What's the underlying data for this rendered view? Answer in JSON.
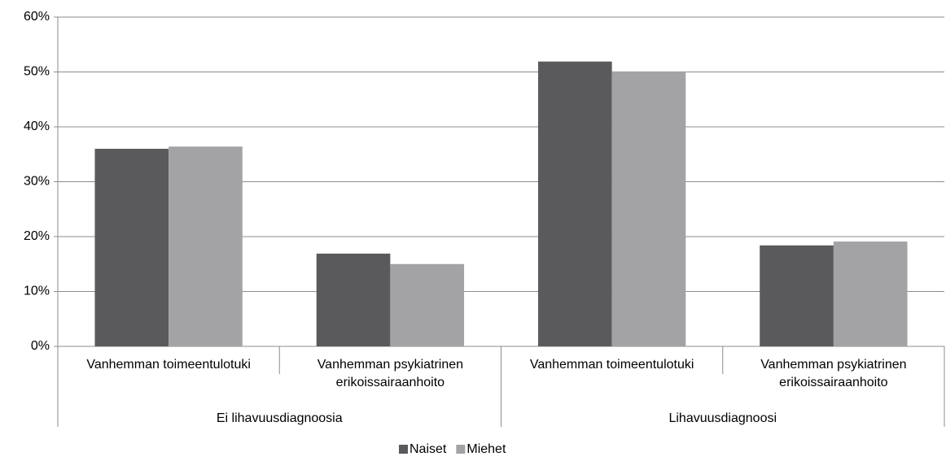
{
  "chart_data": {
    "type": "bar",
    "categories": [
      "Vanhemman toimeentulotuki",
      "Vanhemman psykiatrinen erikoissairaanhoito",
      "Vanhemman toimeentulotuki",
      "Vanhemman psykiatrinen erikoissairaanhoito"
    ],
    "groups": [
      "Ei lihavuusdiagnoosia",
      "Lihavuusdiagnoosi"
    ],
    "series": [
      {
        "name": "Naiset",
        "color": "#5a5a5c",
        "values": [
          36,
          16.9,
          51.9,
          18.4
        ]
      },
      {
        "name": "Miehet",
        "color": "#a3a3a6",
        "values": [
          36.4,
          15,
          50.1,
          19.1
        ]
      }
    ],
    "ylim": [
      0,
      60
    ],
    "yticks": [
      {
        "value": 0,
        "label": "0%"
      },
      {
        "value": 10,
        "label": "10%"
      },
      {
        "value": 20,
        "label": "20%"
      },
      {
        "value": 30,
        "label": "30%"
      },
      {
        "value": 40,
        "label": "40%"
      },
      {
        "value": 50,
        "label": "50%"
      },
      {
        "value": 60,
        "label": "60%"
      }
    ],
    "grid": true,
    "legend": "bottom"
  }
}
